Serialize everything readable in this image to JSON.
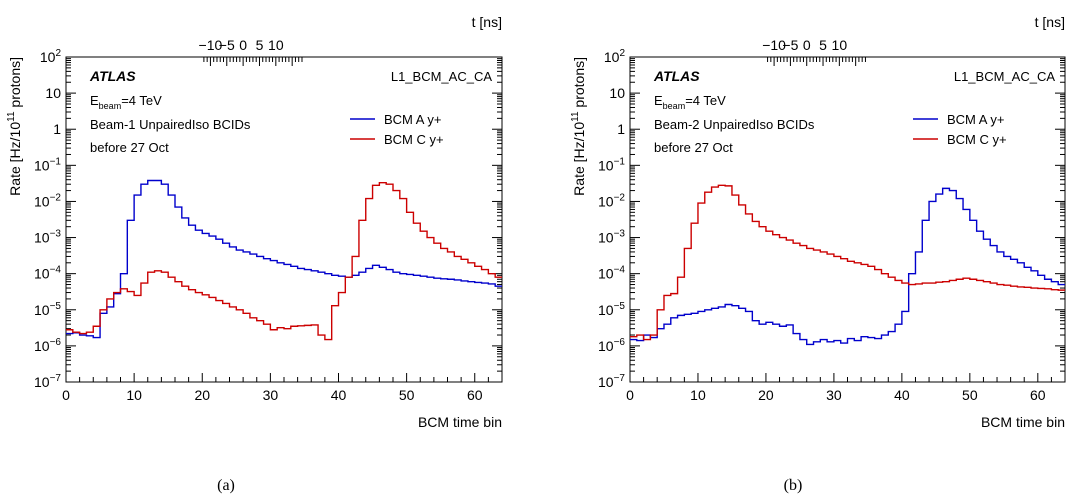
{
  "chart_data": [
    {
      "type": "line",
      "step": true,
      "caption": "(a)",
      "xlabel": "BCM time bin",
      "ylabel": "Rate [Hz/10^11 protons]",
      "ylabel_parts": {
        "pre": "Rate [Hz/10",
        "sup": "11",
        "post": " protons]"
      },
      "x2label": "t [ns]",
      "xlim": [
        0,
        64
      ],
      "ylim": [
        1e-07,
        100
      ],
      "yscale": "log",
      "x_ticks": [
        "0",
        "10",
        "20",
        "30",
        "40",
        "50",
        "60"
      ],
      "x2_ticks": [
        "−10",
        "−5",
        "0",
        "5",
        "10"
      ],
      "y_ticks": [
        {
          "base": "10",
          "exp": "−7"
        },
        {
          "base": "10",
          "exp": "−6"
        },
        {
          "base": "10",
          "exp": "−5"
        },
        {
          "base": "10",
          "exp": "−4"
        },
        {
          "base": "10",
          "exp": "−3"
        },
        {
          "base": "10",
          "exp": "−2"
        },
        {
          "base": "10",
          "exp": "−1"
        },
        {
          "base": "1",
          "exp": ""
        },
        {
          "base": "10",
          "exp": ""
        },
        {
          "base": "10",
          "exp": "2"
        }
      ],
      "atlas_label": "ATLAS",
      "trigger_label": "L1_BCM_AC_CA",
      "energy": {
        "pre": "E",
        "sub": "beam",
        "post": "=4 TeV"
      },
      "info_lines": [
        "Beam-1 UnpairedIso BCIDs",
        "before 27 Oct"
      ],
      "legend_position": "top-right",
      "series": [
        {
          "name": "BCM A y+",
          "color": "#0000cc",
          "values": [
            2.2e-06,
            2.3e-06,
            2e-06,
            1.9e-06,
            1.7e-06,
            8e-06,
            1.2e-05,
            2.8e-05,
            0.0001,
            0.003,
            0.015,
            0.03,
            0.038,
            0.038,
            0.03,
            0.015,
            0.007,
            0.0035,
            0.0022,
            0.0016,
            0.0013,
            0.0011,
            0.0009,
            0.0007,
            0.00055,
            0.00045,
            0.0004,
            0.00035,
            0.0003,
            0.00026,
            0.00023,
            0.0002,
            0.00018,
            0.00016,
            0.00014,
            0.00013,
            0.00012,
            0.00011,
            0.0001,
            9e-05,
            8.5e-05,
            8e-05,
            9e-05,
            0.00011,
            0.00014,
            0.00017,
            0.00015,
            0.00013,
            0.00011,
            0.0001,
            9.5e-05,
            9e-05,
            8.5e-05,
            8e-05,
            7.5e-05,
            7.2e-05,
            7e-05,
            6.7e-05,
            6.3e-05,
            6e-05,
            5.7e-05,
            5.5e-05,
            5.2e-05,
            4.5e-05
          ]
        },
        {
          "name": "BCM C y+",
          "color": "#cc0000",
          "values": [
            2.8e-06,
            2.4e-06,
            2.2e-06,
            2.4e-06,
            3.5e-06,
            1e-05,
            2e-05,
            3e-05,
            3.8e-05,
            3.2e-05,
            2.5e-05,
            5.5e-05,
            0.00011,
            0.00012,
            0.00011,
            8e-05,
            6e-05,
            4.5e-05,
            3.6e-05,
            3e-05,
            2.6e-05,
            2.2e-05,
            1.8e-05,
            1.5e-05,
            1.2e-05,
            1e-05,
            8e-06,
            6e-06,
            5e-06,
            4e-06,
            2.8e-06,
            3.2e-06,
            3e-06,
            3.5e-06,
            3.6e-06,
            3.7e-06,
            3.8e-06,
            2e-06,
            1.5e-06,
            1.3e-05,
            3e-05,
            8e-05,
            0.0003,
            0.003,
            0.012,
            0.028,
            0.033,
            0.03,
            0.02,
            0.012,
            0.005,
            0.0025,
            0.0015,
            0.001,
            0.0007,
            0.0005,
            0.0004,
            0.0003,
            0.00025,
            0.0002,
            0.00016,
            0.00013,
            0.0001,
            8e-05
          ]
        }
      ]
    },
    {
      "type": "line",
      "step": true,
      "caption": "(b)",
      "xlabel": "BCM time bin",
      "ylabel": "Rate [Hz/10^11 protons]",
      "ylabel_parts": {
        "pre": "Rate [Hz/10",
        "sup": "11",
        "post": " protons]"
      },
      "x2label": "t [ns]",
      "xlim": [
        0,
        64
      ],
      "ylim": [
        1e-07,
        100
      ],
      "yscale": "log",
      "x_ticks": [
        "0",
        "10",
        "20",
        "30",
        "40",
        "50",
        "60"
      ],
      "x2_ticks": [
        "−10",
        "−5",
        "0",
        "5",
        "10"
      ],
      "y_ticks": [
        {
          "base": "10",
          "exp": "−7"
        },
        {
          "base": "10",
          "exp": "−6"
        },
        {
          "base": "10",
          "exp": "−5"
        },
        {
          "base": "10",
          "exp": "−4"
        },
        {
          "base": "10",
          "exp": "−3"
        },
        {
          "base": "10",
          "exp": "−2"
        },
        {
          "base": "10",
          "exp": "−1"
        },
        {
          "base": "1",
          "exp": ""
        },
        {
          "base": "10",
          "exp": ""
        },
        {
          "base": "10",
          "exp": "2"
        }
      ],
      "atlas_label": "ATLAS",
      "trigger_label": "L1_BCM_AC_CA",
      "energy": {
        "pre": "E",
        "sub": "beam",
        "post": "=4 TeV"
      },
      "info_lines": [
        "Beam-2 UnpairedIso BCIDs",
        "before 27 Oct"
      ],
      "legend_position": "top-right",
      "series": [
        {
          "name": "BCM A y+",
          "color": "#0000cc",
          "values": [
            1.5e-06,
            1.4e-06,
            2e-06,
            1.7e-06,
            3e-06,
            4e-06,
            6e-06,
            7e-06,
            7.5e-06,
            8e-06,
            9e-06,
            1e-05,
            1.1e-05,
            1.2e-05,
            1.4e-05,
            1.3e-05,
            1.1e-05,
            9e-06,
            5e-06,
            4e-06,
            4.5e-06,
            4e-06,
            3.5e-06,
            3.8e-06,
            2.2e-06,
            1.5e-06,
            1.1e-06,
            1.3e-06,
            1.5e-06,
            1.3e-06,
            1.4e-06,
            1.2e-06,
            1.6e-06,
            1.4e-06,
            1.8e-06,
            1.7e-06,
            1.6e-06,
            2e-06,
            2.5e-06,
            4e-06,
            9e-06,
            0.0001,
            0.0004,
            0.003,
            0.01,
            0.016,
            0.023,
            0.02,
            0.012,
            0.006,
            0.003,
            0.0015,
            0.0009,
            0.0006,
            0.0004,
            0.0003,
            0.00025,
            0.0002,
            0.00015,
            0.00012,
            9e-05,
            7e-05,
            6e-05,
            5e-05
          ]
        },
        {
          "name": "BCM C y+",
          "color": "#cc0000",
          "values": [
            1.8e-06,
            2e-06,
            1.5e-06,
            2e-06,
            1e-05,
            2.5e-05,
            2.8e-05,
            8e-05,
            0.0005,
            0.0025,
            0.009,
            0.018,
            0.025,
            0.028,
            0.027,
            0.015,
            0.008,
            0.0045,
            0.0028,
            0.002,
            0.0015,
            0.0012,
            0.001,
            0.00085,
            0.0007,
            0.0006,
            0.0005,
            0.00045,
            0.0004,
            0.00035,
            0.0003,
            0.00026,
            0.00022,
            0.0002,
            0.00018,
            0.00016,
            0.00013,
            0.0001,
            8e-05,
            6.5e-05,
            5.5e-05,
            5e-05,
            5.2e-05,
            5.5e-05,
            5.5e-05,
            5.8e-05,
            6e-05,
            6.5e-05,
            7e-05,
            7.5e-05,
            7e-05,
            6.5e-05,
            6e-05,
            5.5e-05,
            5e-05,
            4.8e-05,
            4.5e-05,
            4.3e-05,
            4.2e-05,
            4e-05,
            3.9e-05,
            3.8e-05,
            3.6e-05,
            3.5e-05
          ]
        }
      ]
    }
  ]
}
